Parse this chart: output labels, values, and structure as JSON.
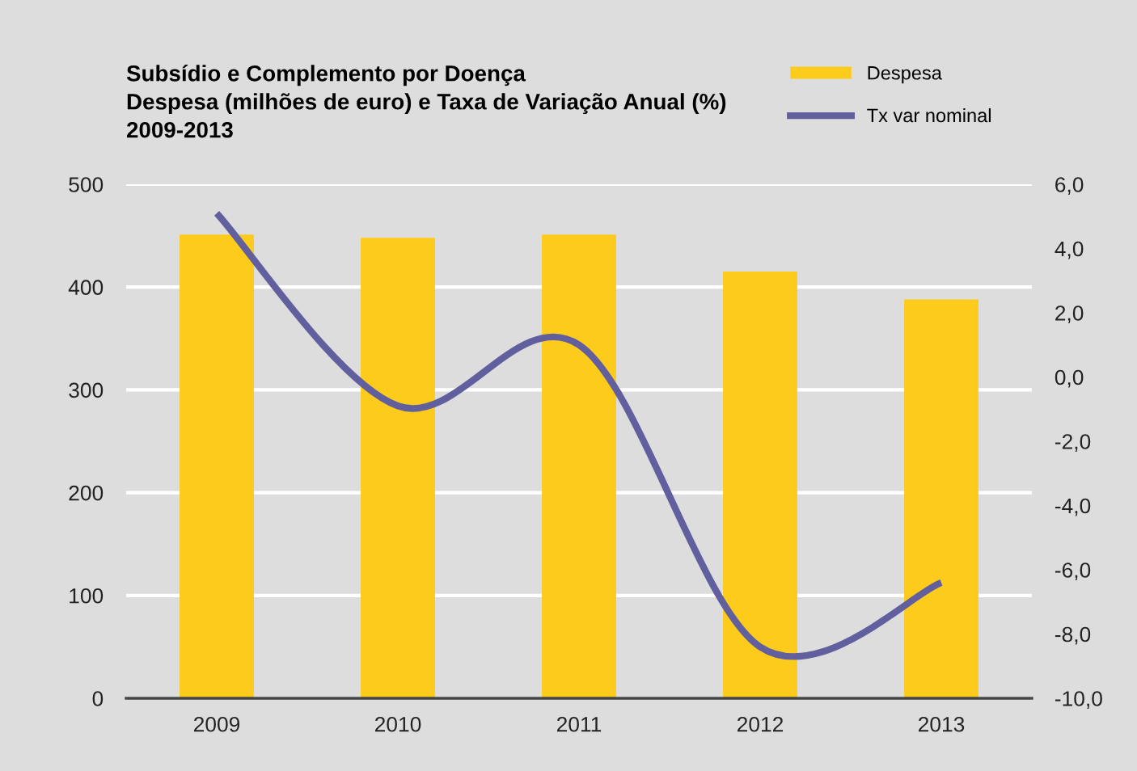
{
  "chart_data": {
    "type": "bar",
    "title": "Subsídio e Complemento por Doença\nDespesa (milhões de euro) e Taxa de Variação Anual (%)\n2009-2013",
    "categories": [
      "2009",
      "2010",
      "2011",
      "2012",
      "2013"
    ],
    "series": [
      {
        "name": "Despesa",
        "color": "#fccb1c",
        "values": [
          451,
          448,
          451,
          415,
          388
        ]
      },
      {
        "name": "Tx var nominal",
        "type": "line",
        "axis": "y2",
        "color": "#615f9e",
        "values": [
          5.1,
          -0.9,
          1.0,
          -8.4,
          -6.4
        ]
      }
    ],
    "ylim": [
      0,
      500
    ],
    "yticks": [
      0,
      100,
      200,
      300,
      400,
      500
    ],
    "y2lim": [
      -10,
      6
    ],
    "y2ticks": [
      {
        "value": -10,
        "label": "-10,0"
      },
      {
        "value": -8,
        "label": "-8,0"
      },
      {
        "value": -6,
        "label": "-6,0"
      },
      {
        "value": -4,
        "label": "-4,0"
      },
      {
        "value": -2,
        "label": "-2,0"
      },
      {
        "value": 0,
        "label": "0,0"
      },
      {
        "value": 2,
        "label": "2,0"
      },
      {
        "value": 4,
        "label": "4,0"
      },
      {
        "value": 6,
        "label": "6,0"
      }
    ],
    "grid": "y",
    "legend": "top right",
    "line_style": "solid",
    "marker": "none"
  }
}
